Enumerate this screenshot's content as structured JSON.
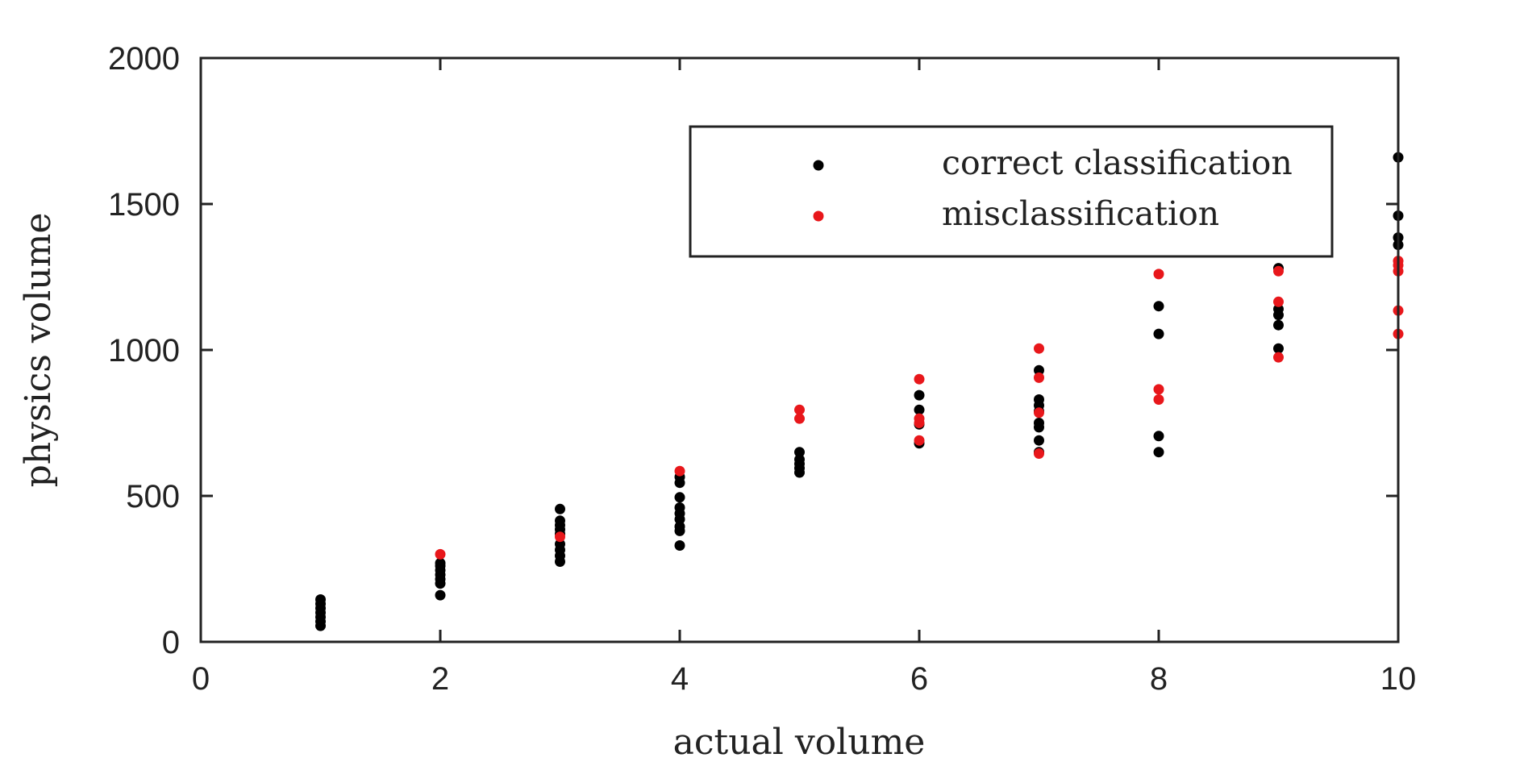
{
  "chart_data": {
    "type": "scatter",
    "title": "",
    "xlabel": "actual volume",
    "ylabel": "physics volume",
    "xlim": [
      0,
      10
    ],
    "ylim": [
      0,
      2000
    ],
    "xticks": [
      0,
      2,
      4,
      6,
      8,
      10
    ],
    "yticks": [
      0,
      500,
      1000,
      1500,
      2000
    ],
    "grid": false,
    "legend_position": "top-right",
    "series": [
      {
        "name": "correct classification",
        "color": "#000000",
        "points": [
          [
            1,
            55
          ],
          [
            1,
            70
          ],
          [
            1,
            85
          ],
          [
            1,
            100
          ],
          [
            1,
            115
          ],
          [
            1,
            130
          ],
          [
            1,
            145
          ],
          [
            2,
            160
          ],
          [
            2,
            200
          ],
          [
            2,
            215
          ],
          [
            2,
            230
          ],
          [
            2,
            245
          ],
          [
            2,
            260
          ],
          [
            2,
            270
          ],
          [
            3,
            275
          ],
          [
            3,
            295
          ],
          [
            3,
            315
          ],
          [
            3,
            335
          ],
          [
            3,
            370
          ],
          [
            3,
            385
          ],
          [
            3,
            400
          ],
          [
            3,
            415
          ],
          [
            3,
            455
          ],
          [
            4,
            330
          ],
          [
            4,
            380
          ],
          [
            4,
            395
          ],
          [
            4,
            420
          ],
          [
            4,
            440
          ],
          [
            4,
            460
          ],
          [
            4,
            495
          ],
          [
            4,
            545
          ],
          [
            4,
            565
          ],
          [
            5,
            580
          ],
          [
            5,
            595
          ],
          [
            5,
            610
          ],
          [
            5,
            625
          ],
          [
            5,
            650
          ],
          [
            6,
            680
          ],
          [
            6,
            745
          ],
          [
            6,
            795
          ],
          [
            6,
            845
          ],
          [
            7,
            650
          ],
          [
            7,
            690
          ],
          [
            7,
            735
          ],
          [
            7,
            750
          ],
          [
            7,
            790
          ],
          [
            7,
            810
          ],
          [
            7,
            830
          ],
          [
            7,
            930
          ],
          [
            8,
            650
          ],
          [
            8,
            705
          ],
          [
            8,
            1055
          ],
          [
            8,
            1150
          ],
          [
            9,
            1005
          ],
          [
            9,
            1085
          ],
          [
            9,
            1120
          ],
          [
            9,
            1140
          ],
          [
            9,
            1280
          ],
          [
            10,
            1360
          ],
          [
            10,
            1385
          ],
          [
            10,
            1460
          ],
          [
            10,
            1660
          ]
        ]
      },
      {
        "name": "misclassification",
        "color": "#e8171b",
        "points": [
          [
            2,
            300
          ],
          [
            3,
            360
          ],
          [
            4,
            585
          ],
          [
            5,
            765
          ],
          [
            5,
            795
          ],
          [
            6,
            690
          ],
          [
            6,
            750
          ],
          [
            6,
            765
          ],
          [
            6,
            900
          ],
          [
            7,
            645
          ],
          [
            7,
            785
          ],
          [
            7,
            905
          ],
          [
            7,
            1005
          ],
          [
            8,
            830
          ],
          [
            8,
            865
          ],
          [
            8,
            1260
          ],
          [
            9,
            975
          ],
          [
            9,
            1165
          ],
          [
            9,
            1270
          ],
          [
            10,
            1055
          ],
          [
            10,
            1135
          ],
          [
            10,
            1270
          ],
          [
            10,
            1290
          ],
          [
            10,
            1305
          ]
        ]
      }
    ]
  }
}
